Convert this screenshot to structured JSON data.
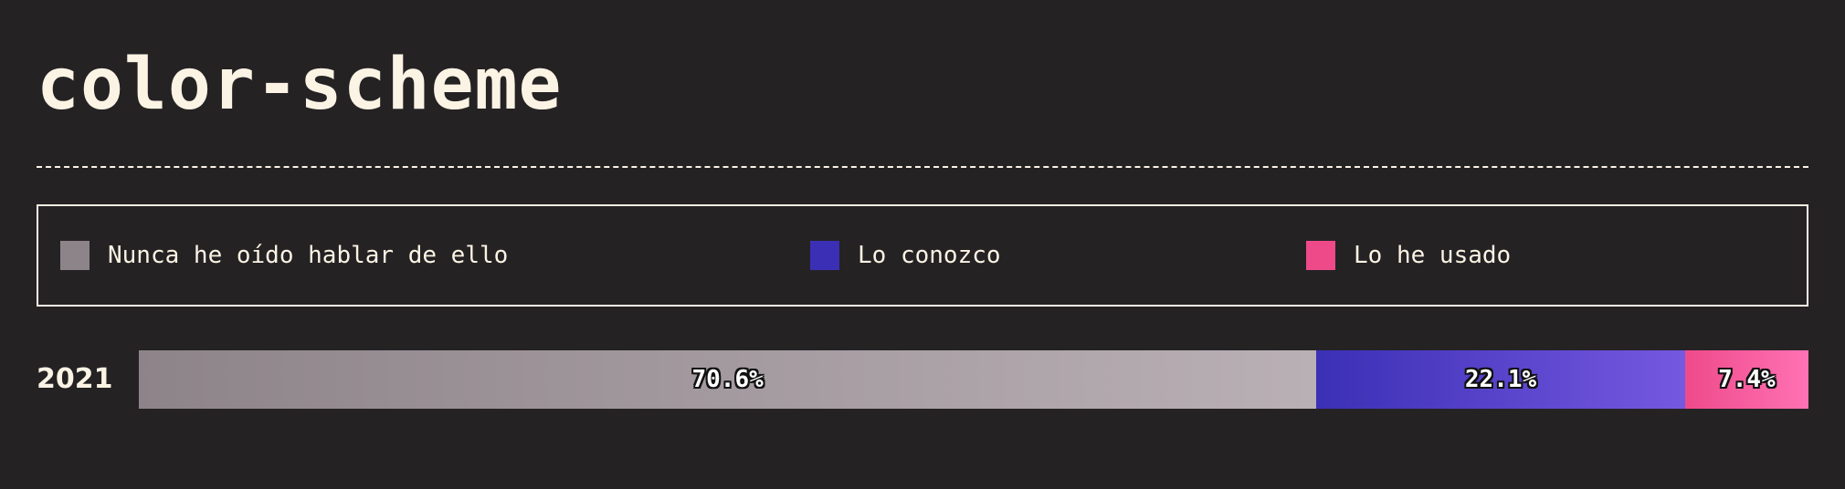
{
  "title": "color-scheme",
  "chart_data": {
    "type": "bar",
    "orientation": "horizontal-stacked",
    "title": "color-scheme",
    "categories": [
      "2021"
    ],
    "legend_placement": "top",
    "series": [
      {
        "name": "Nunca he oído hablar de ello",
        "values": [
          70.6
        ],
        "label": "70.6%",
        "color": "#8d8489",
        "color_end": "#b9b0b5"
      },
      {
        "name": "Lo conozco",
        "values": [
          22.1
        ],
        "label": "22.1%",
        "color": "#3b30b5",
        "color_end": "#7558e0"
      },
      {
        "name": "Lo he usado",
        "values": [
          7.4
        ],
        "label": "7.4%",
        "color": "#ee4a8a",
        "color_end": "#ff72b4"
      }
    ],
    "grid": false
  }
}
